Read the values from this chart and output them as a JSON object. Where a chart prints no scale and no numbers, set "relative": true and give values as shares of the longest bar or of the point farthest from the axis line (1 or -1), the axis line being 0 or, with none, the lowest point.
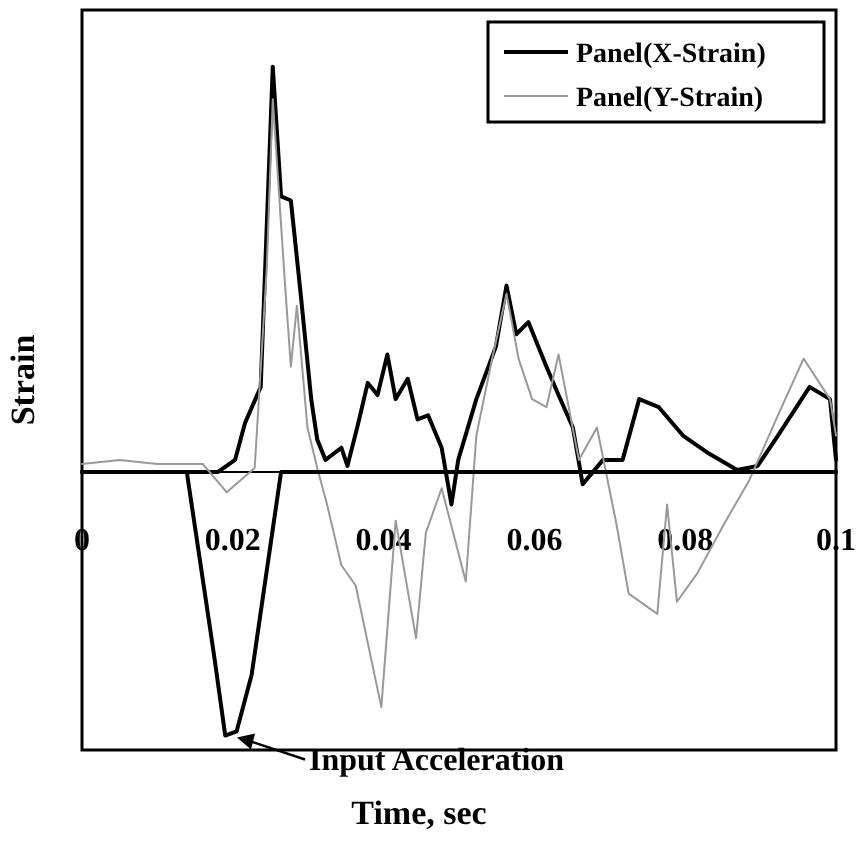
{
  "chart_data": {
    "type": "line",
    "relative": true,
    "xlabel": "Time, sec",
    "ylabel": "Strain",
    "xlim": [
      0,
      0.1
    ],
    "xticks": [
      0,
      0.02,
      0.04,
      0.06,
      0.08,
      0.1
    ],
    "tick_labels": "x",
    "legend": "top right",
    "grid": false,
    "marker": "none",
    "line_style": "solid",
    "annotations": [
      {
        "text": "Input Acceleration",
        "x": 0.0195,
        "y": -0.65
      }
    ],
    "series": [
      {
        "name": "Panel(X-Strain)",
        "color": "#000000",
        "x": [
          0,
          0.018,
          0.0203,
          0.0216,
          0.0237,
          0.0253,
          0.0264,
          0.0277,
          0.029,
          0.0304,
          0.0312,
          0.0323,
          0.0344,
          0.0352,
          0.0365,
          0.0379,
          0.0392,
          0.0405,
          0.0416,
          0.0432,
          0.0445,
          0.0459,
          0.0477,
          0.049,
          0.0499,
          0.0523,
          0.0549,
          0.0563,
          0.0576,
          0.0592,
          0.0616,
          0.0632,
          0.0651,
          0.0664,
          0.0691,
          0.0717,
          0.0739,
          0.0765,
          0.0797,
          0.0832,
          0.0869,
          0.0896,
          0.0923,
          0.0965,
          0.0992,
          0.1
        ],
        "values": [
          0,
          0,
          0.03,
          0.12,
          0.21,
          1.0,
          0.68,
          0.67,
          0.44,
          0.18,
          0.08,
          0.03,
          0.06,
          0.015,
          0.11,
          0.22,
          0.19,
          0.29,
          0.18,
          0.23,
          0.13,
          0.14,
          0.06,
          -0.08,
          0.03,
          0.18,
          0.31,
          0.46,
          0.34,
          0.37,
          0.26,
          0.19,
          0.11,
          -0.03,
          0.03,
          0.03,
          0.18,
          0.16,
          0.09,
          0.045,
          0.005,
          0.015,
          0.09,
          0.21,
          0.18,
          0.03
        ]
      },
      {
        "name": "Panel(Y-Strain)",
        "color": "#999999",
        "x": [
          0,
          0.005,
          0.01,
          0.016,
          0.0192,
          0.0229,
          0.0245,
          0.0253,
          0.0269,
          0.0277,
          0.0285,
          0.0299,
          0.0312,
          0.0325,
          0.0344,
          0.0363,
          0.0397,
          0.0416,
          0.0443,
          0.0456,
          0.0477,
          0.0509,
          0.0523,
          0.0544,
          0.0563,
          0.0579,
          0.0597,
          0.0616,
          0.0632,
          0.0659,
          0.0683,
          0.0709,
          0.0725,
          0.0763,
          0.0776,
          0.0789,
          0.0816,
          0.0851,
          0.0885,
          0.0923,
          0.0957,
          0.0992,
          0.1
        ],
        "values": [
          0.02,
          0.03,
          0.02,
          0.02,
          -0.05,
          0.01,
          0.5,
          0.92,
          0.47,
          0.26,
          0.41,
          0.11,
          0.01,
          -0.08,
          -0.23,
          -0.28,
          -0.58,
          -0.12,
          -0.41,
          -0.15,
          -0.04,
          -0.27,
          0.09,
          0.28,
          0.44,
          0.28,
          0.18,
          0.16,
          0.29,
          0.03,
          0.11,
          -0.13,
          -0.3,
          -0.35,
          -0.08,
          -0.32,
          -0.25,
          -0.13,
          -0.02,
          0.14,
          0.28,
          0.18,
          0.09
        ]
      },
      {
        "color": "#000000",
        "x": [
          0,
          0.0139,
          0.0175,
          0.019,
          0.0205,
          0.0225,
          0.0264,
          0.1
        ],
        "values": [
          0,
          0,
          -0.45,
          -0.65,
          -0.64,
          -0.5,
          0,
          0
        ]
      }
    ]
  }
}
